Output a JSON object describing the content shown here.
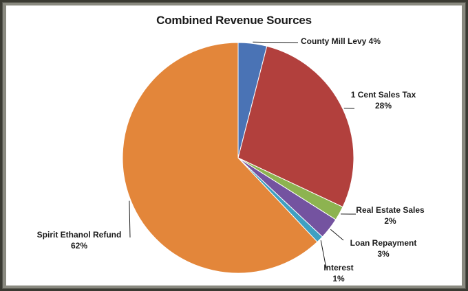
{
  "chart_data": {
    "type": "pie",
    "title": "Combined Revenue Sources",
    "slices": [
      {
        "label": "County Mill Levy",
        "pct_text": "4%",
        "value": 4,
        "color": "#4a73b5"
      },
      {
        "label": "1 Cent Sales Tax",
        "pct_text": "28%",
        "value": 28,
        "color": "#b2403d"
      },
      {
        "label": "Real Estate Sales",
        "pct_text": "2%",
        "value": 2,
        "color": "#8db350"
      },
      {
        "label": "Loan Repayment",
        "pct_text": "3%",
        "value": 3,
        "color": "#7453a0"
      },
      {
        "label": "Interest",
        "pct_text": "1%",
        "value": 1,
        "color": "#3fa0c2"
      },
      {
        "label": "Spirit Ethanol Refund",
        "pct_text": "62%",
        "value": 62,
        "color": "#e3863a"
      }
    ]
  }
}
